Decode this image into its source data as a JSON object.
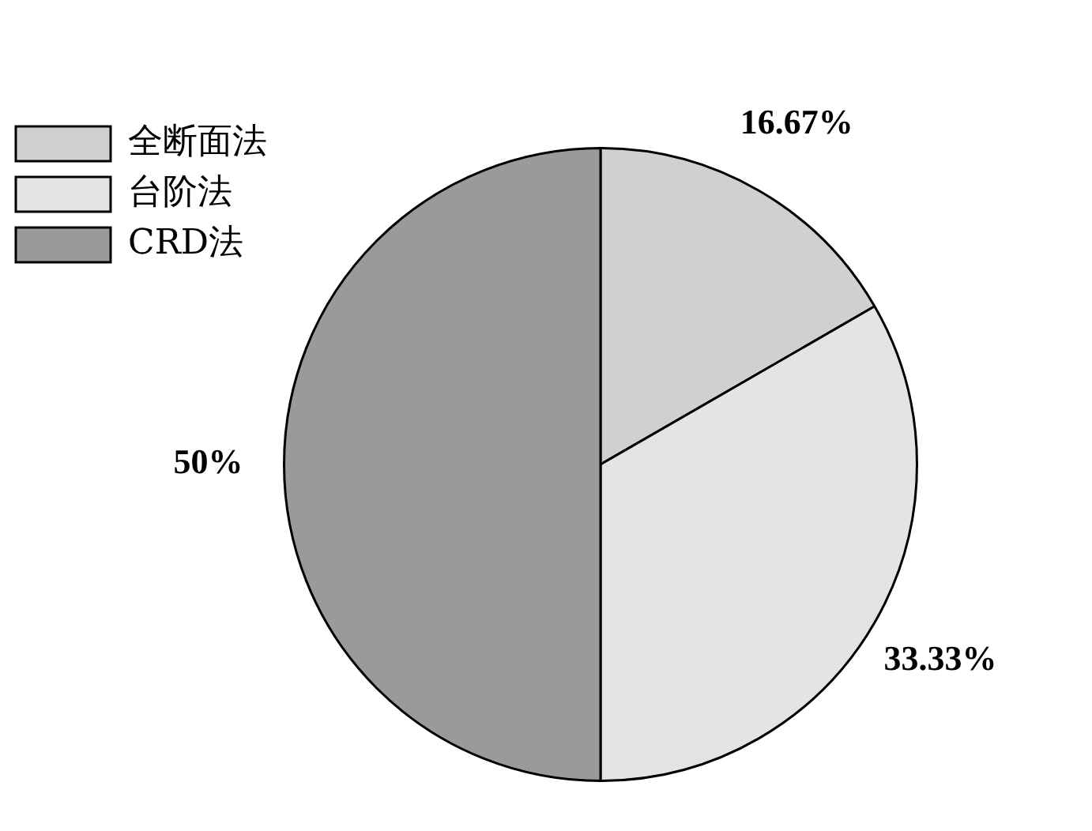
{
  "chart_data": {
    "type": "pie",
    "categories": [
      "全断面法",
      "台阶法",
      "CRD法"
    ],
    "values": [
      16.67,
      33.33,
      50
    ],
    "colors": [
      "#d0d0d0",
      "#e4e4e4",
      "#9a9a9a"
    ],
    "legend": "top left",
    "value_labels": [
      "16.67%",
      "33.33%",
      "50%"
    ]
  }
}
